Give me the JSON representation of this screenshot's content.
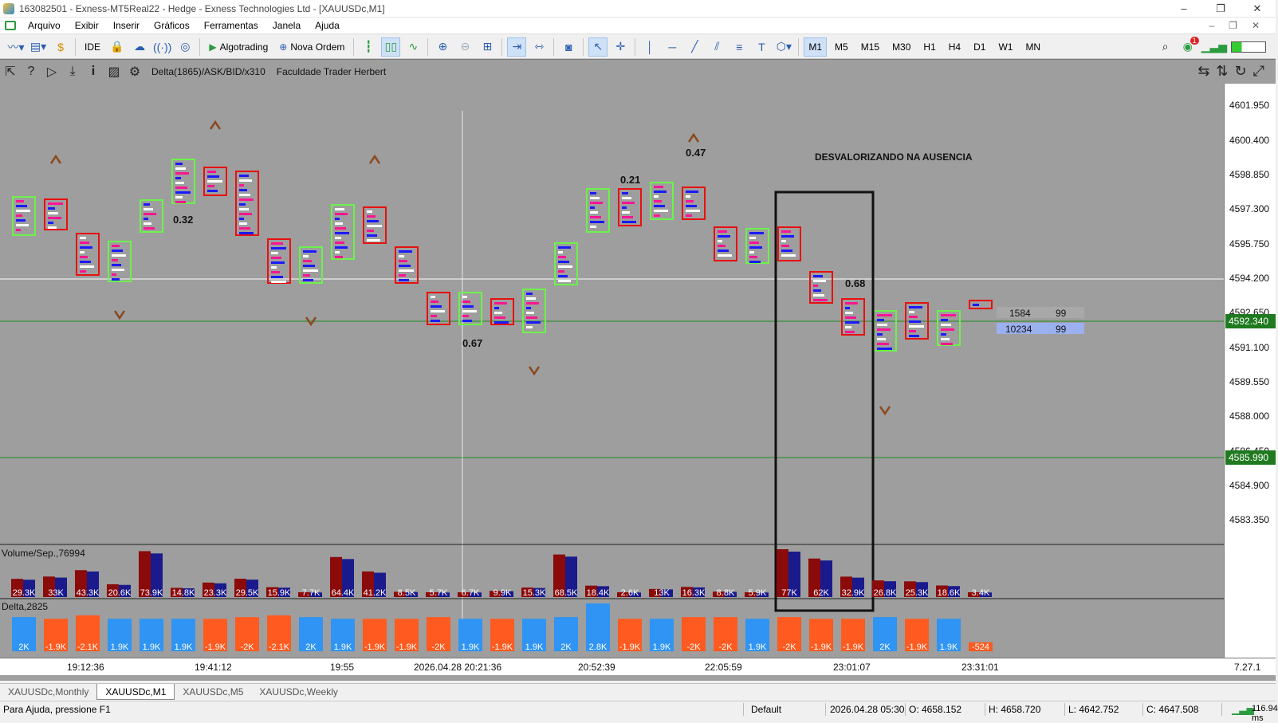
{
  "window": {
    "title": "163082501 - Exness-MT5Real22 - Hedge - Exness Technologies Ltd - [XAUUSDc,M1]",
    "controls": [
      "–",
      "❐",
      "✕"
    ]
  },
  "menu": {
    "items": [
      "Arquivo",
      "Exibir",
      "Inserir",
      "Gráficos",
      "Ferramentas",
      "Janela",
      "Ajuda"
    ],
    "right": [
      "–",
      "❐",
      "✕"
    ]
  },
  "toolbar": {
    "ide_label": "IDE",
    "algotrading_label": "Algotrading",
    "new_order_label": "Nova Ordem",
    "timeframes": [
      "M1",
      "M5",
      "M15",
      "M30",
      "H1",
      "H4",
      "D1",
      "W1",
      "MN"
    ],
    "active_timeframe": "M1",
    "notification_count": "1"
  },
  "chart": {
    "indicator_name": "Delta(1865)/ASK/BID/x310",
    "indicator_author": "Faculdade Trader Herbert",
    "annotation": "DESVALORIZANDO NA AUSENCIA",
    "volume_panel_label": "Volume/Sep.,76994",
    "delta_panel_label": "Delta,2825",
    "price_labels": [
      "4601.950",
      "4600.400",
      "4598.850",
      "4597.300",
      "4595.750",
      "4594.200",
      "4592.650",
      "4591.100",
      "4589.550",
      "4588.000",
      "4586.450",
      "4584.900",
      "4583.350"
    ],
    "current_price_badge": "4592.340",
    "line_price_badge": "4585.990",
    "time_labels": [
      "19:12:36",
      "19:41:12",
      "19:55",
      "2026.04.28 20:21:36",
      "20:52:39",
      "22:05:59",
      "23:01:07",
      "23:31:01"
    ],
    "corner_label": "7.27.1",
    "ratio_labels": [
      "0.32",
      "0.67",
      "0.21",
      "0.47",
      "0.68"
    ],
    "book": {
      "row1_left": "1584",
      "row1_right": "99",
      "row2_left": "10234",
      "row2_right": "99"
    },
    "volume_values": [
      "29.3K",
      "33K",
      "43.3K",
      "20.6K",
      "73.9K",
      "14.8K",
      "23.3K",
      "29.5K",
      "15.9K",
      "7.7K",
      "64.4K",
      "41.2K",
      "8.5K",
      "5.7K",
      "6.7K",
      "9.9K",
      "15.3K",
      "68.5K",
      "18.4K",
      "2.6K",
      "13K",
      "16.3K",
      "8.8K",
      "5.9K",
      "77K",
      "62K",
      "32.9K",
      "26.8K",
      "25.3K",
      "18.6K",
      "3.4K"
    ],
    "delta_values": [
      "2K",
      "-1.9K",
      "-2.1K",
      "1.9K",
      "1.9K",
      "1.9K",
      "-1.9K",
      "-2K",
      "-2.1K",
      "2K",
      "1.9K",
      "-1.9K",
      "-1.9K",
      "-2K",
      "1.9K",
      "-1.9K",
      "1.9K",
      "2K",
      "2.8K",
      "-1.9K",
      "1.9K",
      "-2K",
      "-2K",
      "1.9K",
      "-2K",
      "-1.9K",
      "-1.9K",
      "2K",
      "-1.9K",
      "1.9K",
      "-524"
    ]
  },
  "tabs": [
    "XAUUSDc,Monthly",
    "XAUUSDc,M1",
    "XAUUSDc,M5",
    "XAUUSDc,Weekly"
  ],
  "active_tab": "XAUUSDc,M1",
  "status": {
    "help": "Para Ajuda, pressione F1",
    "profile": "Default",
    "datetime": "2026.04.28 05:30",
    "open": "O: 4658.152",
    "high": "H: 4658.720",
    "low": "L: 4642.752",
    "close": "C: 4647.508",
    "ping": "116.94 ms"
  }
}
